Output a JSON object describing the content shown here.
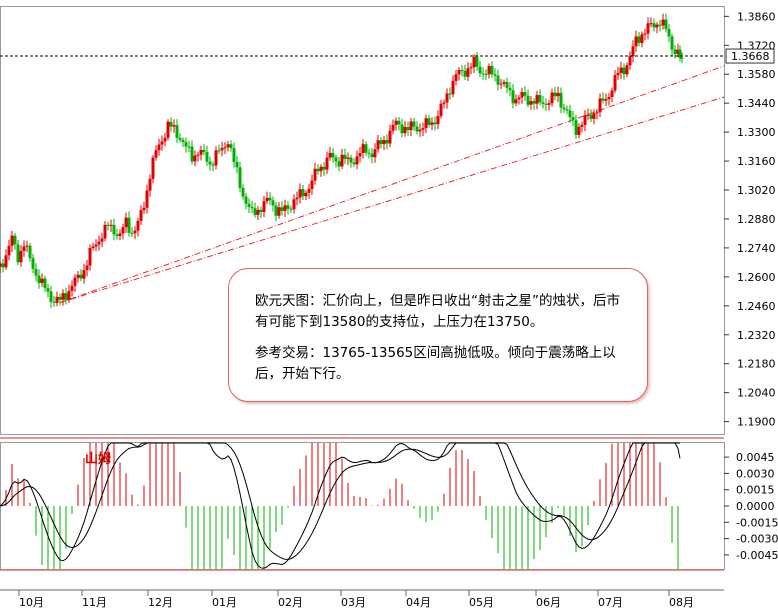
{
  "chart_data": [
    {
      "type": "candlestick",
      "title": "",
      "ylim": [
        1.184,
        1.391
      ],
      "y_ticks": [
        "1.3860",
        "1.3720",
        "1.3580",
        "1.3440",
        "1.3300",
        "1.3160",
        "1.3020",
        "1.2880",
        "1.2740",
        "1.2600",
        "1.2460",
        "1.2320",
        "1.2180",
        "1.2040",
        "1.1900"
      ],
      "current_price_label": "1.3668",
      "current_price": 1.3668,
      "x_ticks": [
        "10月",
        "11月",
        "12月",
        "01月",
        "02月",
        "03月",
        "04月",
        "05月",
        "06月",
        "07月",
        "08月"
      ],
      "up_color": "#e00000",
      "down_color": "#00b000",
      "trendline_color": "#e03030",
      "trendlines": [
        {
          "from": {
            "month": "10月",
            "price": 1.2475
          },
          "to": {
            "month": "08月",
            "price": 1.362
          }
        },
        {
          "from": {
            "month": "10月",
            "price": 1.2475
          },
          "to": {
            "month": "08月",
            "price": 1.347
          }
        }
      ],
      "price_path": [
        [
          0,
          1.265
        ],
        [
          6,
          1.271
        ],
        [
          12,
          1.278
        ],
        [
          18,
          1.27
        ],
        [
          24,
          1.276
        ],
        [
          30,
          1.268
        ],
        [
          36,
          1.262
        ],
        [
          42,
          1.256
        ],
        [
          48,
          1.252
        ],
        [
          54,
          1.249
        ],
        [
          60,
          1.248
        ],
        [
          66,
          1.252
        ],
        [
          72,
          1.256
        ],
        [
          78,
          1.259
        ],
        [
          84,
          1.264
        ],
        [
          90,
          1.271
        ],
        [
          96,
          1.276
        ],
        [
          102,
          1.281
        ],
        [
          108,
          1.284
        ],
        [
          114,
          1.283
        ],
        [
          120,
          1.28
        ],
        [
          126,
          1.286
        ],
        [
          132,
          1.282
        ],
        [
          138,
          1.285
        ],
        [
          144,
          1.295
        ],
        [
          150,
          1.31
        ],
        [
          156,
          1.32
        ],
        [
          162,
          1.327
        ],
        [
          168,
          1.333
        ],
        [
          174,
          1.331
        ],
        [
          180,
          1.328
        ],
        [
          186,
          1.322
        ],
        [
          192,
          1.318
        ],
        [
          198,
          1.321
        ],
        [
          204,
          1.318
        ],
        [
          210,
          1.315
        ],
        [
          216,
          1.319
        ],
        [
          222,
          1.321
        ],
        [
          228,
          1.327
        ],
        [
          234,
          1.315
        ],
        [
          240,
          1.305
        ],
        [
          246,
          1.296
        ],
        [
          252,
          1.29
        ],
        [
          258,
          1.293
        ],
        [
          264,
          1.295
        ],
        [
          270,
          1.297
        ],
        [
          276,
          1.293
        ],
        [
          282,
          1.291
        ],
        [
          288,
          1.294
        ],
        [
          294,
          1.297
        ],
        [
          300,
          1.299
        ],
        [
          306,
          1.302
        ],
        [
          312,
          1.306
        ],
        [
          318,
          1.312
        ],
        [
          324,
          1.315
        ],
        [
          330,
          1.318
        ],
        [
          336,
          1.316
        ],
        [
          342,
          1.318
        ],
        [
          348,
          1.315
        ],
        [
          354,
          1.317
        ],
        [
          360,
          1.32
        ],
        [
          366,
          1.321
        ],
        [
          372,
          1.32
        ],
        [
          378,
          1.323
        ],
        [
          384,
          1.326
        ],
        [
          390,
          1.33
        ],
        [
          396,
          1.334
        ],
        [
          402,
          1.333
        ],
        [
          408,
          1.331
        ],
        [
          414,
          1.333
        ],
        [
          420,
          1.332
        ],
        [
          426,
          1.333
        ],
        [
          432,
          1.335
        ],
        [
          438,
          1.338
        ],
        [
          444,
          1.344
        ],
        [
          450,
          1.352
        ],
        [
          456,
          1.357
        ],
        [
          462,
          1.359
        ],
        [
          468,
          1.361
        ],
        [
          474,
          1.363
        ],
        [
          480,
          1.36
        ],
        [
          486,
          1.359
        ],
        [
          492,
          1.358
        ],
        [
          498,
          1.356
        ],
        [
          504,
          1.352
        ],
        [
          510,
          1.349
        ],
        [
          516,
          1.346
        ],
        [
          522,
          1.347
        ],
        [
          528,
          1.346
        ],
        [
          534,
          1.345
        ],
        [
          540,
          1.344
        ],
        [
          546,
          1.345
        ],
        [
          552,
          1.346
        ],
        [
          558,
          1.348
        ],
        [
          564,
          1.342
        ],
        [
          570,
          1.336
        ],
        [
          576,
          1.332
        ],
        [
          582,
          1.334
        ],
        [
          588,
          1.337
        ],
        [
          594,
          1.34
        ],
        [
          600,
          1.343
        ],
        [
          606,
          1.346
        ],
        [
          612,
          1.352
        ],
        [
          618,
          1.358
        ],
        [
          624,
          1.361
        ],
        [
          630,
          1.366
        ],
        [
          636,
          1.374
        ],
        [
          642,
          1.378
        ],
        [
          648,
          1.38
        ],
        [
          654,
          1.382
        ],
        [
          660,
          1.384
        ],
        [
          666,
          1.379
        ],
        [
          672,
          1.372
        ],
        [
          678,
          1.368
        ],
        [
          682,
          1.3668
        ]
      ]
    },
    {
      "type": "macd",
      "title": "山姆",
      "ylim": [
        -0.0058,
        0.0058
      ],
      "y_ticks": [
        "0.0045",
        "0.0030",
        "0.0015",
        "0.0000",
        "-0.0015",
        "-0.0030",
        "-0.0045"
      ],
      "hist_pos_color": "#e00000",
      "hist_neg_color": "#00b000",
      "line_color": "#000000"
    }
  ],
  "annotation": {
    "line1": "欧元天图：汇价向上，但是昨日收出“射击之星”的烛状，后市有可能下到13580的支持位，上压力在13750。",
    "line2": "参考交易：13765-13565区间高抛低吸。倾向于震荡略上以后，开始下行。"
  }
}
